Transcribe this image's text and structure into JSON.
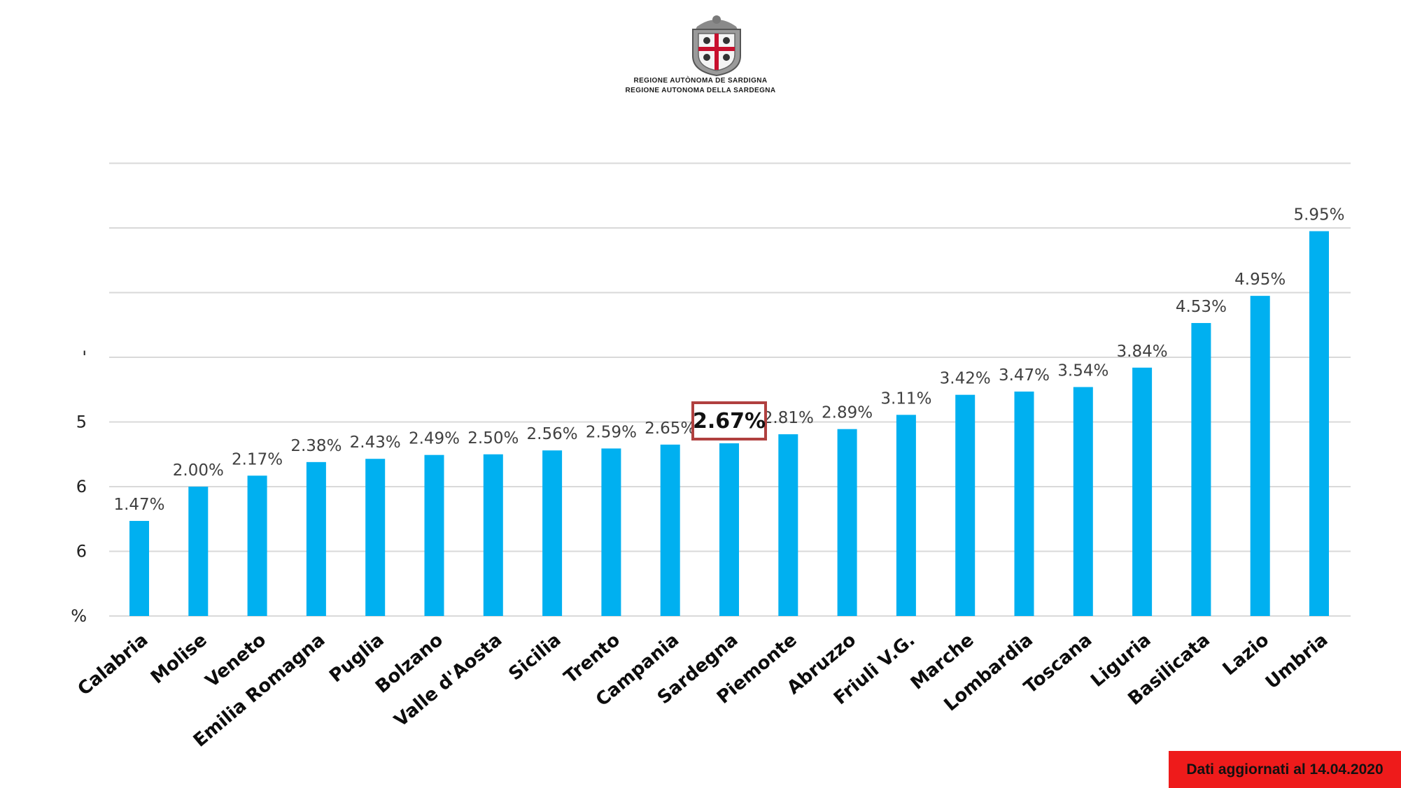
{
  "header": {
    "org_line_1": "REGIONE AUTÒNOMA DE SARDIGNA",
    "org_line_2": "REGIONE AUTONOMA DELLA SARDEGNA",
    "emblem_icon": "sardinia-coat-of-arms-icon"
  },
  "chart_data": {
    "type": "bar",
    "title": "",
    "xlabel": "",
    "ylabel": "",
    "ylim": [
      0,
      7
    ],
    "grid": true,
    "legend": "none",
    "bar_color": "#00b0f0",
    "highlight_color": "#b0403f",
    "y_ticks_visible": [
      "%",
      "6",
      "6",
      "5",
      "'"
    ],
    "categories": [
      "Calabria",
      "Molise",
      "Veneto",
      "Emilia Romagna",
      "Puglia",
      "Bolzano",
      "Valle d'Aosta",
      "Sicilia",
      "Trento",
      "Campania",
      "Sardegna",
      "Piemonte",
      "Abruzzo",
      "Friuli V.G.",
      "Marche",
      "Lombardia",
      "Toscana",
      "Liguria",
      "Basilicata",
      "Lazio",
      "Umbria"
    ],
    "values": [
      1.47,
      2.0,
      2.17,
      2.38,
      2.43,
      2.49,
      2.5,
      2.56,
      2.59,
      2.65,
      2.67,
      2.81,
      2.89,
      3.11,
      3.42,
      3.47,
      3.54,
      3.84,
      4.53,
      4.95,
      5.95
    ],
    "value_labels": [
      "1.47%",
      "2.00%",
      "2.17%",
      "2.38%",
      "2.43%",
      "2.49%",
      "2.50%",
      "2.56%",
      "2.59%",
      "2.65%",
      "2.67%",
      "2.81%",
      "2.89%",
      "3.11%",
      "3.42%",
      "3.47%",
      "3.54%",
      "3.84%",
      "4.53%",
      "4.95%",
      "5.95%"
    ],
    "highlight_index": 10
  },
  "footer": {
    "update_note": "Dati aggiornati al 14.04.2020",
    "note_color": "#ee1b1b"
  }
}
